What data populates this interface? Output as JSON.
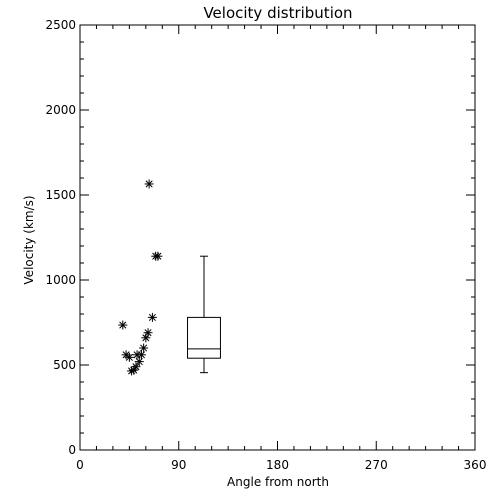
{
  "chart_data": {
    "type": "scatter",
    "title": "Velocity distribution",
    "xlabel": "Angle from north",
    "ylabel": "Velocity (km/s)",
    "xlim": [
      0,
      360
    ],
    "ylim": [
      0,
      2500
    ],
    "xticks": [
      0,
      90,
      180,
      270,
      360
    ],
    "xtick_labels": [
      "0",
      "90",
      "180",
      "270",
      "360"
    ],
    "yticks": [
      0,
      500,
      1000,
      1500,
      2000,
      2500
    ],
    "ytick_labels": [
      "0",
      "500",
      "1000",
      "1500",
      "2000",
      "2500"
    ],
    "grid": false,
    "marker": "asterisk",
    "series": [
      {
        "points": [
          {
            "x": 39,
            "y": 735
          },
          {
            "x": 42,
            "y": 560
          },
          {
            "x": 45,
            "y": 545
          },
          {
            "x": 47,
            "y": 465
          },
          {
            "x": 49,
            "y": 470
          },
          {
            "x": 51,
            "y": 490
          },
          {
            "x": 52,
            "y": 560
          },
          {
            "x": 54,
            "y": 520
          },
          {
            "x": 56,
            "y": 560
          },
          {
            "x": 58,
            "y": 600
          },
          {
            "x": 60,
            "y": 660
          },
          {
            "x": 62,
            "y": 690
          },
          {
            "x": 63,
            "y": 1565
          },
          {
            "x": 66,
            "y": 780
          },
          {
            "x": 69,
            "y": 1140
          },
          {
            "x": 71,
            "y": 1140
          }
        ]
      }
    ],
    "boxplot": {
      "x_center": 113,
      "x_halfwidth": 15,
      "min": 455,
      "q1": 540,
      "median": 595,
      "q3": 780,
      "max": 1140
    }
  }
}
